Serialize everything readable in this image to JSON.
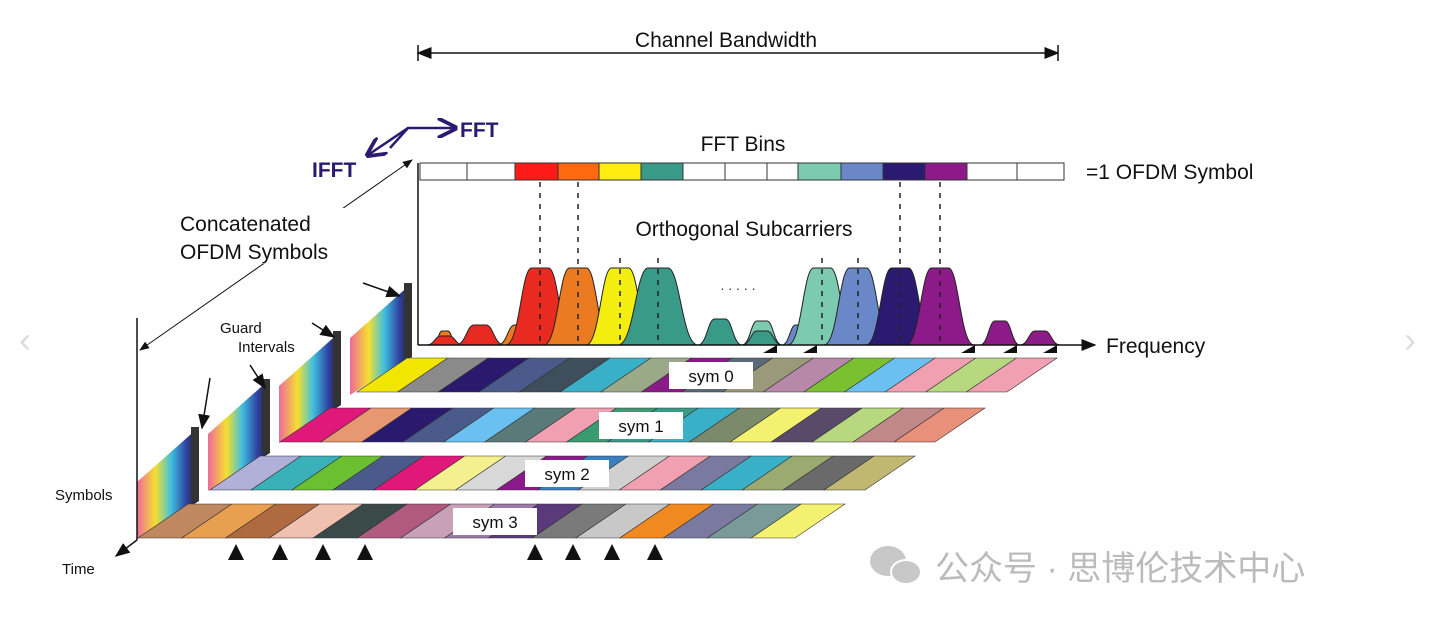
{
  "labels": {
    "channel_bandwidth": "Channel Bandwidth",
    "fft": "FFT",
    "ifft": "IFFT",
    "fft_bins": "FFT Bins",
    "ofdm_symbol": "=1 OFDM Symbol",
    "orthogonal_subcarriers": "Orthogonal Subcarriers",
    "concatenated_1": "Concatenated",
    "concatenated_2": "OFDM Symbols",
    "guard_1": "Guard",
    "guard_2": "Intervals",
    "frequency": "Frequency",
    "symbols": "Symbols",
    "time": "Time",
    "ellipsis": ". . . . ."
  },
  "fft_bins": [
    "#ffffff",
    "#ffffff",
    "#ff1a1a",
    "#ff6a10",
    "#ffee10",
    "#3a9a88",
    "#ffffff",
    "#ffffff",
    "#ffffff",
    "#7ccab0",
    "#6a88c8",
    "#2a1a70",
    "#8c1a88",
    "#ffffff",
    "#ffffff"
  ],
  "subcarriers": [
    {
      "color": "#e82a20",
      "height": 1.0
    },
    {
      "color": "#ec7a20",
      "height": 1.0
    },
    {
      "color": "#f4ee10",
      "height": 1.0
    },
    {
      "color": "#3a9a88",
      "height": 1.0
    },
    {
      "color": "#7ccab0",
      "height": 1.0
    },
    {
      "color": "#6a88c8",
      "height": 1.0
    },
    {
      "color": "#2a1a70",
      "height": 1.0
    },
    {
      "color": "#8c1a88",
      "height": 1.0
    }
  ],
  "symbols": [
    {
      "label": "sym 0",
      "colors": [
        "#f2e600",
        "#8a8a8a",
        "#2a1a6e",
        "#4a5a8a",
        "#3e4e5a",
        "#3ab0c8",
        "#9aaa88",
        "#8a1a8a",
        "#5a6a7a",
        "#9a9a7a",
        "#b888a8",
        "#7ac030",
        "#6ac0f0",
        "#f0a0b0",
        "#b8d880",
        "#f0a0b0"
      ]
    },
    {
      "label": "sym 1",
      "colors": [
        "#e0187a",
        "#e89870",
        "#2a1a6e",
        "#4a5a8a",
        "#6ac0f0",
        "#5a7a7a",
        "#f0a0b0",
        "#3a9a70",
        "#3a9a88",
        "#3ab0c8",
        "#7a8a6a",
        "#f4f070",
        "#5a4a6a",
        "#b8d880",
        "#c08888",
        "#e8907a"
      ]
    },
    {
      "label": "sym 2",
      "colors": [
        "#b0b0d8",
        "#3ab0b8",
        "#6ac030",
        "#4a5a8a",
        "#e0187a",
        "#f4f090",
        "#d8d8d8",
        "#8a1a8a",
        "#3a80c0",
        "#d0d0d0",
        "#f0a0b0",
        "#7a7aa0",
        "#3ab0c8",
        "#9aaa70",
        "#6a6a6a",
        "#c0b870"
      ]
    },
    {
      "label": "sym 3",
      "colors": [
        "#c08860",
        "#e8a050",
        "#b06a40",
        "#f0c0b0",
        "#3a4a48",
        "#b05a80",
        "#c8a0b8",
        "#9a7aa8",
        "#5a3a7a",
        "#7a7a7a",
        "#c8c8c8",
        "#f08a20",
        "#7a7aa0",
        "#7a9a9a",
        "#f4f070"
      ]
    }
  ],
  "watermark": {
    "text": "公众号 · 思博伦技术中心",
    "icon": "wechat-icon"
  },
  "nav": {
    "prev_icon": "chevron-left-icon",
    "next_icon": "chevron-right-icon",
    "prev": "‹",
    "next": "›"
  }
}
